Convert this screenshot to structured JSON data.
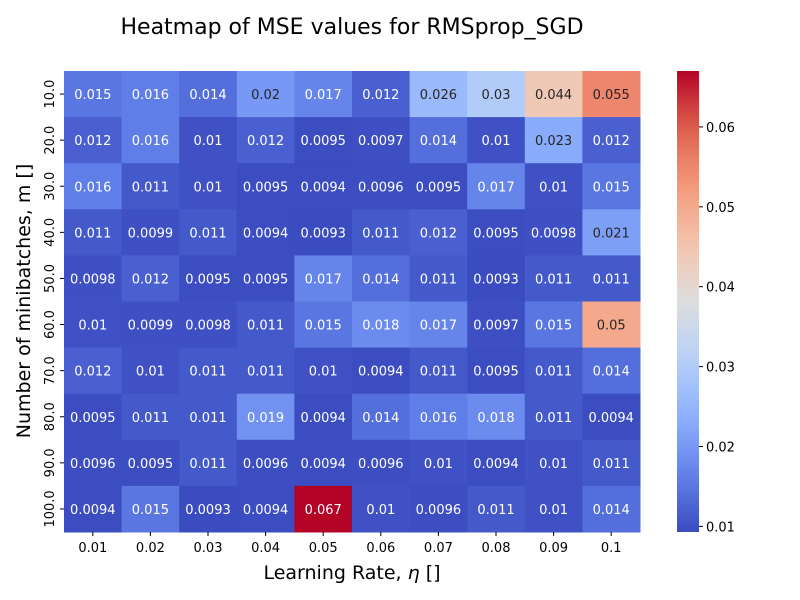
{
  "chart_data": {
    "type": "heatmap",
    "title": "Heatmap of MSE values for RMSprop_SGD",
    "xlabel_text": "Learning Rate, ",
    "xlabel_symbol": "η",
    "xlabel_suffix": " []",
    "ylabel": "Number of minibatches, m []",
    "x_categories": [
      "0.01",
      "0.02",
      "0.03",
      "0.04",
      "0.05",
      "0.06",
      "0.07",
      "0.08",
      "0.09",
      "0.1"
    ],
    "y_categories": [
      "10.0",
      "20.0",
      "30.0",
      "40.0",
      "50.0",
      "60.0",
      "70.0",
      "80.0",
      "90.0",
      "100.0"
    ],
    "values": [
      [
        0.015,
        0.016,
        0.014,
        0.02,
        0.017,
        0.012,
        0.026,
        0.03,
        0.044,
        0.055
      ],
      [
        0.012,
        0.016,
        0.01,
        0.012,
        0.0095,
        0.0097,
        0.014,
        0.01,
        0.023,
        0.012
      ],
      [
        0.016,
        0.011,
        0.01,
        0.0095,
        0.0094,
        0.0096,
        0.0095,
        0.017,
        0.01,
        0.015
      ],
      [
        0.011,
        0.0099,
        0.011,
        0.0094,
        0.0093,
        0.011,
        0.012,
        0.0095,
        0.0098,
        0.021
      ],
      [
        0.0098,
        0.012,
        0.0095,
        0.0095,
        0.017,
        0.014,
        0.011,
        0.0093,
        0.011,
        0.011
      ],
      [
        0.01,
        0.0099,
        0.0098,
        0.011,
        0.015,
        0.018,
        0.017,
        0.0097,
        0.015,
        0.05
      ],
      [
        0.012,
        0.01,
        0.011,
        0.011,
        0.01,
        0.0094,
        0.011,
        0.0095,
        0.011,
        0.014
      ],
      [
        0.0095,
        0.011,
        0.011,
        0.019,
        0.0094,
        0.014,
        0.016,
        0.018,
        0.011,
        0.0094
      ],
      [
        0.0096,
        0.0095,
        0.011,
        0.0096,
        0.0094,
        0.0096,
        0.01,
        0.0094,
        0.01,
        0.011
      ],
      [
        0.0094,
        0.015,
        0.0093,
        0.0094,
        0.067,
        0.01,
        0.0096,
        0.011,
        0.01,
        0.014
      ]
    ],
    "colormap": "coolwarm",
    "vmin": 0.0093,
    "vmax": 0.067,
    "colorbar_ticks": [
      "0.01",
      "0.02",
      "0.03",
      "0.04",
      "0.05",
      "0.06"
    ],
    "grid": false
  }
}
